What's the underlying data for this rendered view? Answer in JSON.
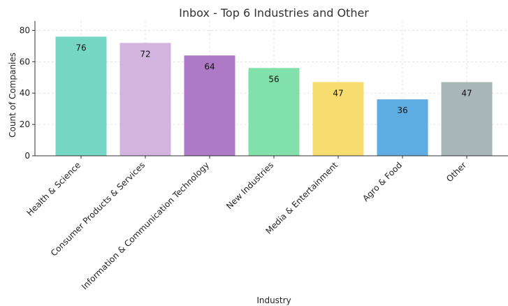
{
  "chart_data": {
    "type": "bar",
    "title": "Inbox - Top 6 Industries and Other",
    "xlabel": "Industry",
    "ylabel": "Count of Companies",
    "categories": [
      "Health & Science",
      "Consumer Products & Services",
      "Information & Communication Technology",
      "New Industries",
      "Media & Entertainment",
      "Agro & Food",
      "Other"
    ],
    "values": [
      76,
      72,
      64,
      56,
      47,
      36,
      47
    ],
    "colors": [
      "#76d7c4",
      "#d2b4de",
      "#af7ac5",
      "#82e0aa",
      "#f7dc6f",
      "#5dade2",
      "#aab7b8"
    ],
    "ylim": [
      0,
      86
    ],
    "yticks": [
      0,
      20,
      40,
      60,
      80
    ],
    "grid": true,
    "legend": "none"
  }
}
